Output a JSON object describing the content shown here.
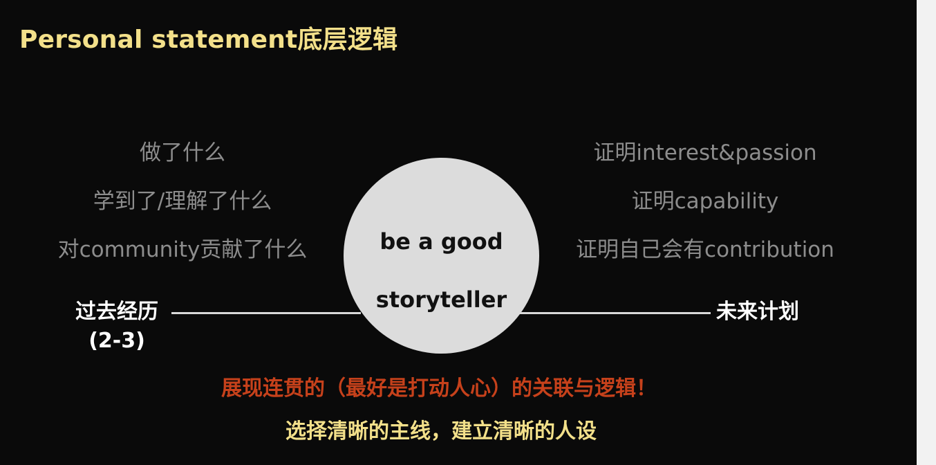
{
  "title": "Personal statement底层逻辑",
  "left_items": [
    "做了什么",
    "学到了/理解了什么",
    "对community贡献了什么"
  ],
  "right_items": [
    "证明interest&passion",
    "证明capability",
    "证明自己会有contribution"
  ],
  "center": {
    "line1": "be a good",
    "line2": "storyteller"
  },
  "past": {
    "label": "过去经历",
    "sub": "(2-3)"
  },
  "future": {
    "label": "未来计划"
  },
  "headline": "展现连贯的（最好是打动人心）的关联与逻辑！",
  "subline": "选择清晰的主线，建立清晰的人设",
  "colors": {
    "background": "#0a0a0a",
    "title": "#f3e08a",
    "muted_text": "#8d8d8d",
    "circle": "#dcdcdc",
    "headline": "#c6411b",
    "subline": "#f3e08a"
  }
}
